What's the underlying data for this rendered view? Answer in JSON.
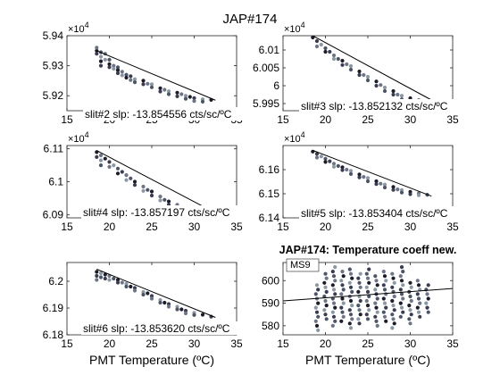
{
  "figure_title": "JAP#174",
  "chart_data": [
    {
      "type": "scatter",
      "title": "",
      "xlabel": "",
      "ylabel": "",
      "exponent_label": "×10",
      "exponent_power": "4",
      "annotation": "slit#2 slp: -13.854556 cts/sc/ºC",
      "xlim": [
        15,
        35
      ],
      "ylim": [
        59150,
        59400
      ],
      "xticks": [
        "15",
        "20",
        "25",
        "30",
        "35"
      ],
      "yticks": [
        "5.92",
        "5.93",
        "5.94"
      ],
      "ytick_values": [
        59200,
        59300,
        59400
      ],
      "xtick_labels_visible": [
        "15"
      ],
      "fit_line": {
        "x": [
          18.5,
          32.5
        ],
        "y": [
          59350,
          59185
        ]
      },
      "points": [
        [
          18.5,
          59350
        ],
        [
          18.5,
          59340
        ],
        [
          18.5,
          59360
        ],
        [
          19,
          59330
        ],
        [
          19,
          59345
        ],
        [
          19,
          59315
        ],
        [
          19,
          59300
        ],
        [
          19.5,
          59340
        ],
        [
          19.5,
          59320
        ],
        [
          20,
          59320
        ],
        [
          20,
          59305
        ],
        [
          20,
          59295
        ],
        [
          20.5,
          59300
        ],
        [
          20.5,
          59290
        ],
        [
          21,
          59295
        ],
        [
          21,
          59285
        ],
        [
          21,
          59275
        ],
        [
          21.5,
          59280
        ],
        [
          21.5,
          59268
        ],
        [
          22,
          59270
        ],
        [
          22,
          59260
        ],
        [
          22.5,
          59265
        ],
        [
          22.5,
          59252
        ],
        [
          23,
          59255
        ],
        [
          23,
          59245
        ],
        [
          24,
          59250
        ],
        [
          24,
          59238
        ],
        [
          24.5,
          59240
        ],
        [
          25,
          59238
        ],
        [
          25,
          59228
        ],
        [
          26,
          59225
        ],
        [
          26,
          59214
        ],
        [
          26.5,
          59220
        ],
        [
          27,
          59215
        ],
        [
          27,
          59205
        ],
        [
          28,
          59210
        ],
        [
          28,
          59198
        ],
        [
          28.5,
          59205
        ],
        [
          29,
          59200
        ],
        [
          29,
          59190
        ],
        [
          29.5,
          59196
        ],
        [
          30,
          59192
        ],
        [
          30,
          59182
        ],
        [
          31,
          59188
        ],
        [
          31,
          59180
        ],
        [
          32,
          59186
        ]
      ]
    },
    {
      "type": "scatter",
      "title": "",
      "xlabel": "",
      "ylabel": "",
      "exponent_label": "×10",
      "exponent_power": "4",
      "annotation": "slit#3 slp: -13.852132 cts/sc/ºC",
      "xlim": [
        15,
        35
      ],
      "ylim": [
        59930,
        60140
      ],
      "xticks": [
        "15",
        "20",
        "25",
        "30",
        "35"
      ],
      "yticks": [
        "5.995",
        "6",
        "6.005",
        "6.01"
      ],
      "ytick_values": [
        59950,
        60000,
        60050,
        60100
      ],
      "fit_line": {
        "x": [
          18.5,
          32.5
        ],
        "y": [
          60140,
          59960
        ]
      },
      "points": [
        [
          18.5,
          60135
        ],
        [
          19,
          60125
        ],
        [
          19,
          60110
        ],
        [
          19.5,
          60115
        ],
        [
          20,
          60105
        ],
        [
          20,
          60095
        ],
        [
          20.5,
          60095
        ],
        [
          21,
          60085
        ],
        [
          21,
          60075
        ],
        [
          21.5,
          60075
        ],
        [
          22,
          60070
        ],
        [
          22,
          60058
        ],
        [
          22.5,
          60060
        ],
        [
          23,
          60055
        ],
        [
          23,
          60045
        ],
        [
          24,
          60040
        ],
        [
          24,
          60030
        ],
        [
          24.5,
          60030
        ],
        [
          25,
          60025
        ],
        [
          25,
          60015
        ],
        [
          26,
          60012
        ],
        [
          26,
          60000
        ],
        [
          26.5,
          60002
        ],
        [
          27,
          59995
        ],
        [
          27,
          59985
        ],
        [
          28,
          59985
        ],
        [
          28,
          59975
        ],
        [
          28.5,
          59975
        ],
        [
          29,
          59972
        ],
        [
          29,
          59962
        ],
        [
          30,
          59965
        ],
        [
          30,
          59955
        ],
        [
          31,
          59960
        ],
        [
          31,
          59950
        ],
        [
          32,
          59955
        ]
      ]
    },
    {
      "type": "scatter",
      "title": "",
      "xlabel": "",
      "ylabel": "",
      "exponent_label": "×10",
      "exponent_power": "4",
      "annotation": "slit#4 slp: -13.857197 cts/sc/ºC",
      "xlim": [
        15,
        35
      ],
      "ylim": [
        60890,
        61110
      ],
      "xticks": [
        "15",
        "20",
        "25",
        "30",
        "35"
      ],
      "yticks": [
        "6.09",
        "6.1",
        "6.11"
      ],
      "ytick_values": [
        60900,
        61000,
        61100
      ],
      "fit_line": {
        "x": [
          18.5,
          32.5
        ],
        "y": [
          61095,
          60905
        ]
      },
      "points": [
        [
          18.5,
          61090
        ],
        [
          18.5,
          61075
        ],
        [
          19,
          61080
        ],
        [
          19,
          61065
        ],
        [
          19,
          61050
        ],
        [
          19.5,
          61070
        ],
        [
          20,
          61060
        ],
        [
          20,
          61045
        ],
        [
          20.5,
          61050
        ],
        [
          21,
          61040
        ],
        [
          21,
          61025
        ],
        [
          21.5,
          61030
        ],
        [
          22,
          61020
        ],
        [
          22,
          61005
        ],
        [
          22.5,
          61010
        ],
        [
          23,
          61000
        ],
        [
          23,
          60990
        ],
        [
          24,
          60985
        ],
        [
          24,
          60972
        ],
        [
          24.5,
          60975
        ],
        [
          25,
          60970
        ],
        [
          25,
          60958
        ],
        [
          26,
          60955
        ],
        [
          26,
          60943
        ],
        [
          26.5,
          60945
        ],
        [
          27,
          60940
        ],
        [
          27,
          60930
        ],
        [
          28,
          60930
        ],
        [
          28,
          60918
        ],
        [
          28.5,
          60920
        ],
        [
          29,
          60915
        ],
        [
          29,
          60905
        ],
        [
          30,
          60908
        ],
        [
          30,
          60898
        ],
        [
          31,
          60900
        ]
      ]
    },
    {
      "type": "scatter",
      "title": "",
      "xlabel": "",
      "ylabel": "",
      "exponent_label": "×10",
      "exponent_power": "4",
      "annotation": "slit#5 slp: -13.853404 cts/sc/ºC",
      "xlim": [
        15,
        35
      ],
      "ylim": [
        61400,
        61700
      ],
      "xticks": [
        "15",
        "20",
        "25",
        "30",
        "35"
      ],
      "yticks": [
        "6.14",
        "6.15",
        "6.16"
      ],
      "ytick_values": [
        61400,
        61500,
        61600
      ],
      "fit_line": {
        "x": [
          18.5,
          32.5
        ],
        "y": [
          61680,
          61490
        ]
      },
      "points": [
        [
          18.5,
          61675
        ],
        [
          19,
          61665
        ],
        [
          19,
          61650
        ],
        [
          19.5,
          61655
        ],
        [
          20,
          61645
        ],
        [
          20,
          61632
        ],
        [
          20.5,
          61635
        ],
        [
          21,
          61625
        ],
        [
          21,
          61612
        ],
        [
          21.5,
          61615
        ],
        [
          22,
          61610
        ],
        [
          22,
          61598
        ],
        [
          22.5,
          61600
        ],
        [
          23,
          61595
        ],
        [
          23,
          61582
        ],
        [
          24,
          61580
        ],
        [
          24,
          61568
        ],
        [
          24.5,
          61570
        ],
        [
          25,
          61565
        ],
        [
          25,
          61552
        ],
        [
          26,
          61552
        ],
        [
          26,
          61540
        ],
        [
          26.5,
          61542
        ],
        [
          27,
          61538
        ],
        [
          27,
          61526
        ],
        [
          28,
          61528
        ],
        [
          28,
          61516
        ],
        [
          28.5,
          61518
        ],
        [
          29,
          61515
        ],
        [
          29,
          61505
        ],
        [
          30,
          61508
        ],
        [
          30,
          61498
        ],
        [
          31,
          61502
        ],
        [
          31,
          61494
        ],
        [
          32,
          61496
        ]
      ]
    },
    {
      "type": "scatter",
      "title": "",
      "xlabel": "PMT Temperature (ºC)",
      "ylabel": "",
      "annotation": "slit#6 slp: -13.853620 cts/sc/ºC",
      "xlim": [
        15,
        35
      ],
      "ylim": [
        6.18,
        6.207
      ],
      "xticks": [
        "15",
        "20",
        "25",
        "30",
        "35"
      ],
      "yticks": [
        "6.18",
        "6.19",
        "6.2"
      ],
      "ytick_values": [
        6.18,
        6.19,
        6.2
      ],
      "fit_line": {
        "x": [
          18.5,
          32.5
        ],
        "y": [
          6.2045,
          6.1865
        ]
      },
      "points": [
        [
          18.5,
          6.2035
        ],
        [
          18.5,
          6.202
        ],
        [
          18.5,
          6.2005
        ],
        [
          19,
          6.203
        ],
        [
          19,
          6.2015
        ],
        [
          19.5,
          6.2025
        ],
        [
          19.5,
          6.201
        ],
        [
          20,
          6.202
        ],
        [
          20,
          6.2005
        ],
        [
          20.5,
          6.201
        ],
        [
          21,
          6.2005
        ],
        [
          21,
          6.1995
        ],
        [
          21.5,
          6.1995
        ],
        [
          22,
          6.199
        ],
        [
          22,
          6.198
        ],
        [
          22.5,
          6.198
        ],
        [
          23,
          6.1975
        ],
        [
          23,
          6.1965
        ],
        [
          24,
          6.196
        ],
        [
          24,
          6.195
        ],
        [
          24.5,
          6.1955
        ],
        [
          25,
          6.1945
        ],
        [
          25,
          6.1935
        ],
        [
          26,
          6.193
        ],
        [
          26,
          6.192
        ],
        [
          26.5,
          6.192
        ],
        [
          27,
          6.1915
        ],
        [
          27,
          6.1905
        ],
        [
          28,
          6.1905
        ],
        [
          28,
          6.1895
        ],
        [
          28.5,
          6.1895
        ],
        [
          29,
          6.189
        ],
        [
          29,
          6.188
        ],
        [
          30,
          6.1882
        ],
        [
          30,
          6.1874
        ],
        [
          31,
          6.1875
        ],
        [
          32,
          6.1868
        ]
      ]
    },
    {
      "type": "scatter",
      "title": "JAP#174: Temperature coeff new.",
      "xlabel": "PMT Temperature (ºC)",
      "ylabel": "",
      "legend": [
        "MS9"
      ],
      "legend_position": "top-left",
      "xlim": [
        15,
        35
      ],
      "ylim": [
        576,
        608
      ],
      "xticks": [
        "15",
        "20",
        "25",
        "30",
        "35"
      ],
      "yticks": [
        "580",
        "590",
        "600"
      ],
      "ytick_values": [
        580,
        590,
        600
      ],
      "fit_line": {
        "x": [
          15,
          35
        ],
        "y": [
          591,
          596.5
        ]
      },
      "columns_x": [
        19,
        20,
        21,
        22,
        23,
        24,
        25,
        26,
        27,
        28,
        29,
        30,
        31,
        32
      ],
      "columns_range": [
        [
          578,
          598
        ],
        [
          583,
          603
        ],
        [
          580,
          606
        ],
        [
          582,
          604
        ],
        [
          579,
          605
        ],
        [
          581,
          603
        ],
        [
          583,
          606
        ],
        [
          580,
          602
        ],
        [
          582,
          605
        ],
        [
          579,
          603
        ],
        [
          584,
          606
        ],
        [
          581,
          600
        ],
        [
          584,
          601
        ],
        [
          586,
          599
        ]
      ]
    }
  ]
}
